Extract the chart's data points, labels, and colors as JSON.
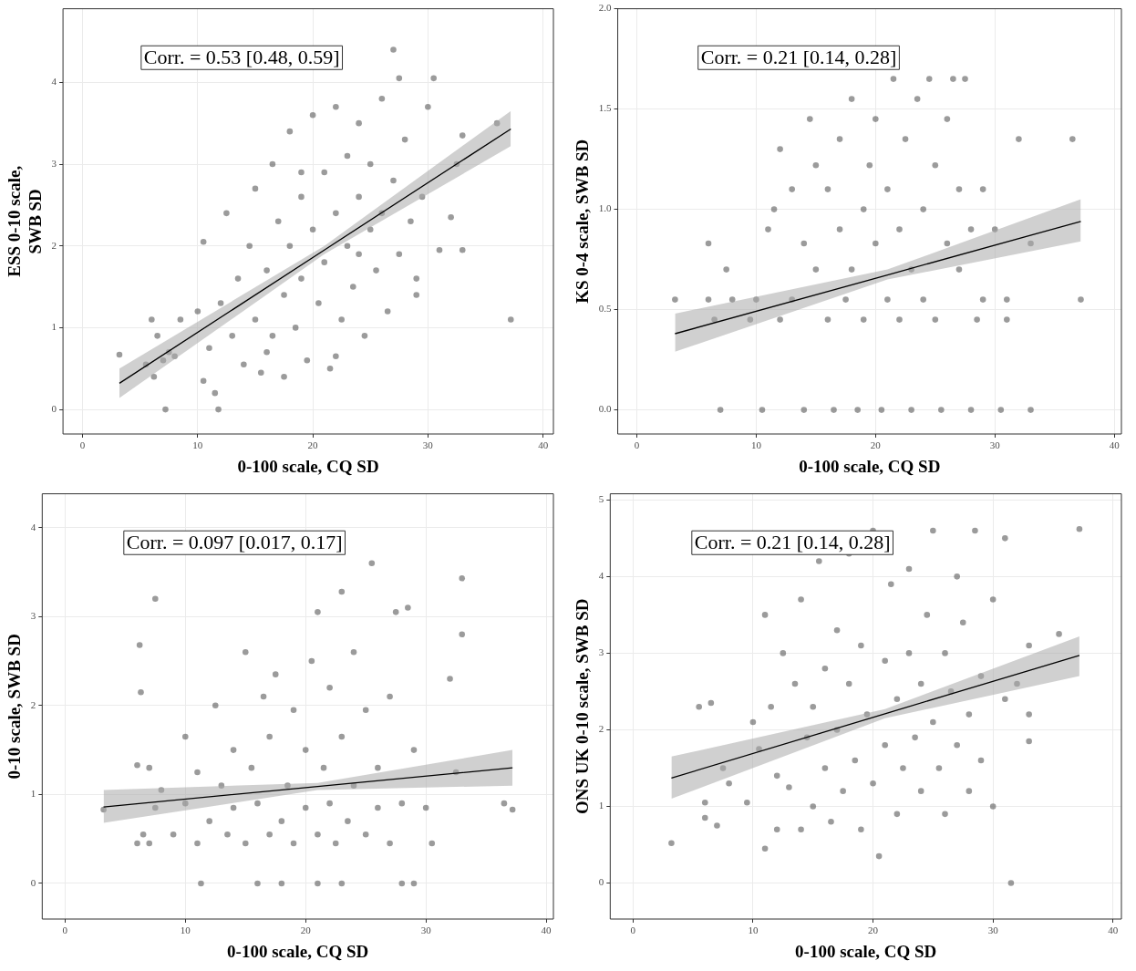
{
  "chart_data": [
    {
      "type": "scatter",
      "xlabel": "0-100 scale, CQ SD",
      "ylabel": "ESS 0-10 scale,\nSWB SD",
      "annotations": [
        "Corr. = 0.53 [0.48, 0.59]"
      ],
      "xlim": [
        -1.7,
        40.9
      ],
      "ylim": [
        -0.3,
        4.9
      ],
      "xticks": [
        0,
        10,
        20,
        30,
        40
      ],
      "yticks": [
        0,
        1,
        2,
        3,
        4
      ],
      "grid": true,
      "series": [
        {
          "marker": "circle",
          "color": "#595959",
          "x": [
            3.2,
            5.5,
            6,
            6.2,
            6.5,
            7,
            7.2,
            7.5,
            8,
            8.5,
            10,
            10.5,
            10.5,
            11,
            11.5,
            11.8,
            12,
            12.5,
            13,
            13.5,
            14,
            14.5,
            15,
            15,
            15.5,
            16,
            16.5,
            16.5,
            17,
            17.5,
            17.5,
            18,
            18,
            18.5,
            19,
            19,
            19.5,
            20,
            20,
            20.5,
            21,
            21,
            21.5,
            22,
            22,
            22.5,
            23,
            23,
            23.5,
            24,
            24,
            24.5,
            25,
            25,
            25.5,
            26,
            26,
            26.5,
            27,
            27,
            27.5,
            27.5,
            28,
            28.5,
            29,
            29.5,
            30,
            30.5,
            31,
            32,
            32.5,
            33,
            33,
            36,
            37.2,
            29,
            22,
            16,
            19,
            24
          ],
          "values": [
            0.67,
            0.55,
            1.1,
            0.4,
            0.9,
            0.6,
            0,
            0.7,
            0.65,
            1.1,
            1.2,
            2.05,
            0.35,
            0.75,
            0.2,
            0,
            1.3,
            2.4,
            0.9,
            1.6,
            0.55,
            2.0,
            1.1,
            2.7,
            0.45,
            1.7,
            3.0,
            0.9,
            2.3,
            1.4,
            0.4,
            3.4,
            2.0,
            1.0,
            2.6,
            1.6,
            0.6,
            3.6,
            2.2,
            1.3,
            2.9,
            1.8,
            0.5,
            3.7,
            2.4,
            1.1,
            3.1,
            2.0,
            1.5,
            3.5,
            2.6,
            0.9,
            2.2,
            3.0,
            1.7,
            3.8,
            2.4,
            1.2,
            4.4,
            2.8,
            4.05,
            1.9,
            3.3,
            2.3,
            1.6,
            2.6,
            3.7,
            4.05,
            1.95,
            2.35,
            3.0,
            1.95,
            3.35,
            3.5,
            1.1,
            1.4,
            0.65,
            0.7,
            2.9,
            1.9
          ]
        },
        {
          "type": "line",
          "color": "#000000",
          "x": [
            3.2,
            21,
            37.2
          ],
          "values": [
            0.32,
            1.95,
            3.43
          ],
          "lower": [
            0.14,
            1.9,
            3.22
          ],
          "upper": [
            0.5,
            2.0,
            3.65
          ]
        }
      ]
    },
    {
      "type": "scatter",
      "xlabel": "0-100 scale, CQ SD",
      "ylabel": "KS 0-4 scale, SWB SD",
      "annotations": [
        "Corr. = 0.21 [0.14, 0.28]"
      ],
      "xlim": [
        -1.6,
        40.6
      ],
      "ylim": [
        -0.12,
        2.0
      ],
      "xticks": [
        0,
        10,
        20,
        30,
        40
      ],
      "yticks": [
        {
          "value": 0,
          "label": "0.0"
        },
        {
          "value": 0.5,
          "label": "0.5"
        },
        {
          "value": 1,
          "label": "1.0"
        },
        {
          "value": 1.5,
          "label": "1.5"
        },
        {
          "value": 2,
          "label": "2.0"
        }
      ],
      "grid": true,
      "series": [
        {
          "marker": "circle",
          "color": "#595959",
          "x": [
            3.2,
            6,
            6,
            6.5,
            7,
            7.5,
            8,
            9.5,
            10,
            10.5,
            11,
            11.5,
            12,
            12,
            13,
            13,
            14,
            14,
            14.5,
            15,
            15,
            16,
            16,
            16.5,
            17,
            17,
            17.5,
            18,
            18,
            18.5,
            19,
            19,
            19.5,
            20,
            20,
            20.5,
            21,
            21,
            21.5,
            22,
            22,
            22.5,
            23,
            23,
            23.5,
            24,
            24,
            24.5,
            25,
            25,
            25.5,
            26,
            26,
            26.5,
            27,
            27,
            27.5,
            28,
            28,
            28.5,
            29,
            29,
            30,
            30.5,
            31,
            31,
            32,
            33,
            33,
            36.5,
            37.2
          ],
          "values": [
            0.55,
            0.83,
            0.55,
            0.45,
            0,
            0.7,
            0.55,
            0.45,
            0.55,
            0,
            0.9,
            1.0,
            1.3,
            0.45,
            0.55,
            1.1,
            0,
            0.83,
            1.45,
            0.7,
            1.22,
            0.45,
            1.1,
            0,
            1.35,
            0.9,
            0.55,
            1.55,
            0.7,
            0,
            1.0,
            0.45,
            1.22,
            0.83,
            1.45,
            0,
            0.55,
            1.1,
            1.65,
            0.9,
            0.45,
            1.35,
            0,
            0.7,
            1.55,
            1.0,
            0.55,
            1.65,
            0.45,
            1.22,
            0,
            0.83,
            1.45,
            1.65,
            0.7,
            1.1,
            1.65,
            0,
            0.9,
            0.45,
            0.55,
            1.1,
            0.9,
            0,
            0.55,
            0.45,
            1.35,
            0,
            0.83,
            1.35,
            0.55
          ]
        },
        {
          "type": "line",
          "color": "#000000",
          "x": [
            3.2,
            21,
            37.2
          ],
          "values": [
            0.38,
            0.673,
            0.94
          ],
          "lower": [
            0.29,
            0.65,
            0.84
          ],
          "upper": [
            0.48,
            0.7,
            1.05
          ]
        }
      ]
    },
    {
      "type": "scatter",
      "xlabel": "0-100 scale, CQ SD",
      "ylabel": "0-10 scale, SWB SD",
      "annotations": [
        "Corr. = 0.097 [0.017, 0.17]"
      ],
      "xlim": [
        -1.9,
        40.6
      ],
      "ylim": [
        -0.4,
        4.38
      ],
      "xticks": [
        0,
        10,
        20,
        30,
        40
      ],
      "yticks": [
        0,
        1,
        2,
        3,
        4
      ],
      "grid": true,
      "series": [
        {
          "marker": "circle",
          "color": "#595959",
          "x": [
            3.2,
            6,
            6,
            6.2,
            6.3,
            6.5,
            7,
            7,
            7.5,
            7.5,
            8,
            9,
            10,
            10,
            11,
            11,
            11.3,
            12,
            12.5,
            13,
            13.5,
            14,
            14,
            15,
            15,
            15.5,
            16,
            16,
            16.5,
            17,
            17,
            17.5,
            18,
            18,
            18.5,
            19,
            19,
            20,
            20,
            20.5,
            21,
            21,
            21,
            21.5,
            22,
            22,
            22.5,
            23,
            23,
            23,
            23.5,
            24,
            24,
            25,
            25,
            25.5,
            26,
            26,
            27,
            27,
            27.5,
            28,
            28,
            28.5,
            29,
            29,
            30,
            30.5,
            32,
            32.5,
            33,
            33,
            36.5,
            37.2
          ],
          "values": [
            0.83,
            1.33,
            0.45,
            2.68,
            2.15,
            0.55,
            1.3,
            0.45,
            3.2,
            0.85,
            1.05,
            0.55,
            1.65,
            0.9,
            1.25,
            0.45,
            0,
            0.7,
            2.0,
            1.1,
            0.55,
            1.5,
            0.85,
            2.6,
            0.45,
            1.3,
            0,
            0.9,
            2.1,
            0.55,
            1.65,
            2.35,
            0.7,
            0,
            1.1,
            1.95,
            0.45,
            0.85,
            1.5,
            2.5,
            0,
            3.05,
            0.55,
            1.3,
            2.2,
            0.9,
            0.45,
            3.28,
            1.65,
            0,
            0.7,
            1.1,
            2.6,
            0.55,
            1.95,
            3.6,
            0.85,
            1.3,
            0.45,
            2.1,
            3.05,
            0.9,
            0,
            3.1,
            1.5,
            0,
            0.85,
            0.45,
            2.3,
            1.25,
            3.43,
            2.8,
            0.9,
            0.83
          ]
        },
        {
          "type": "line",
          "color": "#000000",
          "x": [
            3.2,
            21,
            37.2
          ],
          "values": [
            0.86,
            1.09,
            1.3
          ],
          "lower": [
            0.68,
            1.05,
            1.1
          ],
          "upper": [
            1.05,
            1.13,
            1.5
          ]
        }
      ]
    },
    {
      "type": "scatter",
      "xlabel": "0-100 scale, CQ SD",
      "ylabel": "ONS UK 0-10 scale, SWB SD",
      "annotations": [
        "Corr. = 0.21 [0.14, 0.28]"
      ],
      "xlim": [
        -1.9,
        40.7
      ],
      "ylim": [
        -0.47,
        5.08
      ],
      "xticks": [
        0,
        10,
        20,
        30,
        40
      ],
      "yticks": [
        0,
        1,
        2,
        3,
        4,
        5
      ],
      "grid": true,
      "series": [
        {
          "marker": "circle",
          "color": "#595959",
          "x": [
            3.2,
            5.5,
            6,
            6,
            6.5,
            7,
            7.5,
            8,
            9.5,
            10,
            10.5,
            11,
            11,
            11.5,
            12,
            12,
            12.5,
            13,
            13.5,
            14,
            14,
            14.5,
            15,
            15,
            15.5,
            16,
            16,
            16.5,
            17,
            17,
            17.5,
            18,
            18,
            18.5,
            19,
            19,
            19.5,
            20,
            20,
            20.5,
            21,
            21,
            21.5,
            22,
            22,
            22.5,
            23,
            23,
            23.5,
            24,
            24,
            24.5,
            25,
            25,
            25.5,
            26,
            26,
            26.5,
            27,
            27,
            27.5,
            28,
            28,
            28.5,
            29,
            29,
            30,
            30,
            31,
            31,
            31.5,
            32,
            33,
            33,
            33,
            35.5,
            37.2
          ],
          "values": [
            0.52,
            2.3,
            1.05,
            0.85,
            2.35,
            0.75,
            1.5,
            1.3,
            1.05,
            2.1,
            1.75,
            3.5,
            0.45,
            2.3,
            1.4,
            0.7,
            3.0,
            1.25,
            2.6,
            0.7,
            3.7,
            1.9,
            2.3,
            1.0,
            4.2,
            1.5,
            2.8,
            0.8,
            3.3,
            2.0,
            1.2,
            4.3,
            2.6,
            1.6,
            0.7,
            3.1,
            2.2,
            4.6,
            1.3,
            0.35,
            2.9,
            1.8,
            3.9,
            2.4,
            0.9,
            1.5,
            4.1,
            3.0,
            1.9,
            2.6,
            1.2,
            3.5,
            4.6,
            2.1,
            1.5,
            3.0,
            0.9,
            2.5,
            4.0,
            1.8,
            3.4,
            2.2,
            1.2,
            4.6,
            2.7,
            1.6,
            3.7,
            1.0,
            4.5,
            2.4,
            0,
            2.6,
            3.1,
            1.85,
            2.2,
            3.25,
            4.62
          ]
        },
        {
          "type": "line",
          "color": "#000000",
          "x": [
            3.2,
            21,
            37.2
          ],
          "values": [
            1.37,
            2.21,
            2.97
          ],
          "lower": [
            1.1,
            2.15,
            2.7
          ],
          "upper": [
            1.65,
            2.27,
            3.22
          ]
        }
      ]
    }
  ]
}
